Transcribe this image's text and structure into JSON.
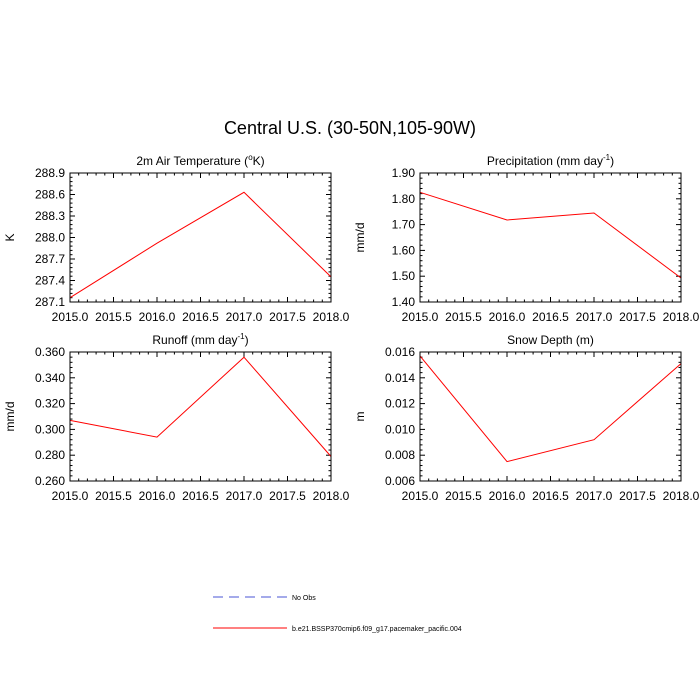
{
  "page": {
    "title": "Central U.S. (30-50N,105-90W)"
  },
  "chart_data": [
    {
      "type": "line",
      "title": "2m Air Temperature (",
      "title_sup": "o",
      "title_after": "K)",
      "ylabel": "K",
      "x": [
        2015.0,
        2016.0,
        2017.0,
        2018.0
      ],
      "series": [
        {
          "name": "b.e21.BSSP370cmip6.f09_g17.pacemaker_pacific.004",
          "values": [
            287.16,
            287.92,
            288.63,
            287.45
          ],
          "color": "#ff0000"
        }
      ],
      "xlim": [
        2015.0,
        2018.0
      ],
      "ylim": [
        287.1,
        288.9
      ],
      "yticks": [
        287.1,
        287.4,
        287.7,
        288.0,
        288.3,
        288.6,
        288.9
      ],
      "ytick_labels": [
        "287.1",
        "287.4",
        "287.7",
        "288.0",
        "288.3",
        "288.6",
        "288.9"
      ]
    },
    {
      "type": "line",
      "title": "Precipitation (mm day",
      "title_sup": "-1",
      "title_after": ")",
      "ylabel": "mm/d",
      "x": [
        2015.0,
        2016.0,
        2017.0,
        2018.0
      ],
      "series": [
        {
          "name": "b.e21.BSSP370cmip6.f09_g17.pacemaker_pacific.004",
          "values": [
            1.825,
            1.718,
            1.745,
            1.493
          ],
          "color": "#ff0000"
        }
      ],
      "xlim": [
        2015.0,
        2018.0
      ],
      "ylim": [
        1.4,
        1.9
      ],
      "yticks": [
        1.4,
        1.5,
        1.6,
        1.7,
        1.8,
        1.9
      ],
      "ytick_labels": [
        "1.40",
        "1.50",
        "1.60",
        "1.70",
        "1.80",
        "1.90"
      ]
    },
    {
      "type": "line",
      "title": "Runoff (mm day",
      "title_sup": "-1",
      "title_after": ")",
      "ylabel": "mm/d",
      "x": [
        2015.0,
        2016.0,
        2017.0,
        2018.0
      ],
      "series": [
        {
          "name": "b.e21.BSSP370cmip6.f09_g17.pacemaker_pacific.004",
          "values": [
            0.307,
            0.294,
            0.356,
            0.279
          ],
          "color": "#ff0000"
        }
      ],
      "xlim": [
        2015.0,
        2018.0
      ],
      "ylim": [
        0.26,
        0.36
      ],
      "yticks": [
        0.26,
        0.28,
        0.3,
        0.32,
        0.34,
        0.36
      ],
      "ytick_labels": [
        "0.260",
        "0.280",
        "0.300",
        "0.320",
        "0.340",
        "0.360"
      ]
    },
    {
      "type": "line",
      "title": "Snow Depth (m)",
      "title_sup": "",
      "title_after": "",
      "ylabel": "m",
      "x": [
        2015.0,
        2016.0,
        2017.0,
        2018.0
      ],
      "series": [
        {
          "name": "b.e21.BSSP370cmip6.f09_g17.pacemaker_pacific.004",
          "values": [
            0.0157,
            0.0075,
            0.0092,
            0.0151
          ],
          "color": "#ff0000"
        }
      ],
      "xlim": [
        2015.0,
        2018.0
      ],
      "ylim": [
        0.006,
        0.016
      ],
      "yticks": [
        0.006,
        0.008,
        0.01,
        0.012,
        0.014,
        0.016
      ],
      "ytick_labels": [
        "0.006",
        "0.008",
        "0.010",
        "0.012",
        "0.014",
        "0.016"
      ]
    }
  ],
  "shared_x": {
    "xticks": [
      2015.0,
      2015.5,
      2016.0,
      2016.5,
      2017.0,
      2017.5,
      2018.0
    ],
    "xtick_labels": [
      "2015.0",
      "2015.5",
      "2016.0",
      "2016.5",
      "2017.0",
      "2017.5",
      "2018.0"
    ]
  },
  "legend": [
    {
      "label": "No Obs",
      "color": "#4a55d6",
      "style": "dashed"
    },
    {
      "label": "b.e21.BSSP370cmip6.f09_g17.pacemaker_pacific.004",
      "color": "#ff0000",
      "style": "solid"
    }
  ]
}
